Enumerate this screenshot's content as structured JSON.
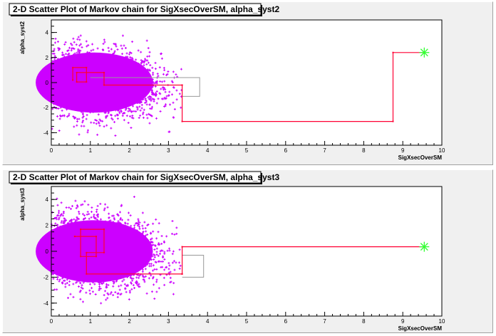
{
  "chart_data": [
    {
      "type": "scatter",
      "title": "2-D Scatter Plot of Markov chain for SigXsecOverSM, alpha_syst2",
      "xlabel": "SigXsecOverSM",
      "ylabel": "alpha_syst2",
      "xlim": [
        0,
        10
      ],
      "ylim": [
        -5,
        5
      ],
      "xticks": [
        "0",
        "1",
        "2",
        "3",
        "4",
        "5",
        "6",
        "7",
        "8",
        "9",
        "10"
      ],
      "yticks": [
        "-4",
        "-2",
        "0",
        "2",
        "4"
      ],
      "cloud": {
        "color": "#cc00ff",
        "description_points": "dense cloud centered near x=1.1, y=0",
        "center": [
          1.1,
          0.0
        ],
        "x_extent": [
          0.0,
          3.4
        ],
        "y_extent": [
          -4.3,
          4.3
        ]
      },
      "chain_path": {
        "color": "#ff0033",
        "x": [
          0.55,
          0.55,
          0.9,
          0.9,
          0.65,
          0.65,
          1.35,
          1.35,
          3.35,
          3.35,
          3.35,
          8.75,
          8.75,
          9.55
        ],
        "y": [
          0.2,
          1.2,
          1.2,
          0.05,
          0.05,
          0.8,
          0.8,
          -0.2,
          -0.2,
          -0.2,
          -3.1,
          -3.1,
          2.4,
          2.4
        ]
      },
      "chain_path_grey": {
        "color": "#999999",
        "x": [
          1.0,
          3.8,
          3.8,
          3.35
        ],
        "y": [
          0.4,
          0.4,
          -1.1,
          -1.1
        ]
      },
      "best_fit": {
        "x": 9.55,
        "y": 2.4,
        "color": "#33ff33"
      }
    },
    {
      "type": "scatter",
      "title": "2-D Scatter Plot of Markov chain for SigXsecOverSM, alpha_syst3",
      "xlabel": "SigXsecOverSM",
      "ylabel": "alpha_syst3",
      "xlim": [
        0,
        10
      ],
      "ylim": [
        -5,
        5
      ],
      "xticks": [
        "0",
        "1",
        "2",
        "3",
        "4",
        "5",
        "6",
        "7",
        "8",
        "9",
        "10"
      ],
      "yticks": [
        "-4",
        "-2",
        "0",
        "2",
        "4"
      ],
      "cloud": {
        "color": "#cc00ff",
        "center": [
          1.1,
          0.0
        ],
        "x_extent": [
          0.0,
          3.4
        ],
        "y_extent": [
          -4.3,
          4.3
        ]
      },
      "chain_path": {
        "color": "#ff0033",
        "x": [
          0.6,
          0.6,
          1.15,
          1.15,
          0.75,
          0.75,
          1.35,
          1.35,
          0.9,
          0.9,
          3.35,
          3.35,
          3.35,
          9.55
        ],
        "y": [
          1.15,
          1.15,
          1.15,
          -0.4,
          -0.4,
          1.7,
          1.7,
          -0.1,
          -0.1,
          -1.75,
          -1.75,
          -1.75,
          0.35,
          0.35
        ]
      },
      "chain_path_grey": {
        "color": "#999999",
        "x": [
          3.35,
          3.9,
          3.9,
          3.35
        ],
        "y": [
          -0.3,
          -0.3,
          -2.0,
          -2.0
        ]
      },
      "best_fit": {
        "x": 9.55,
        "y": 0.35,
        "color": "#33ff33"
      }
    }
  ]
}
